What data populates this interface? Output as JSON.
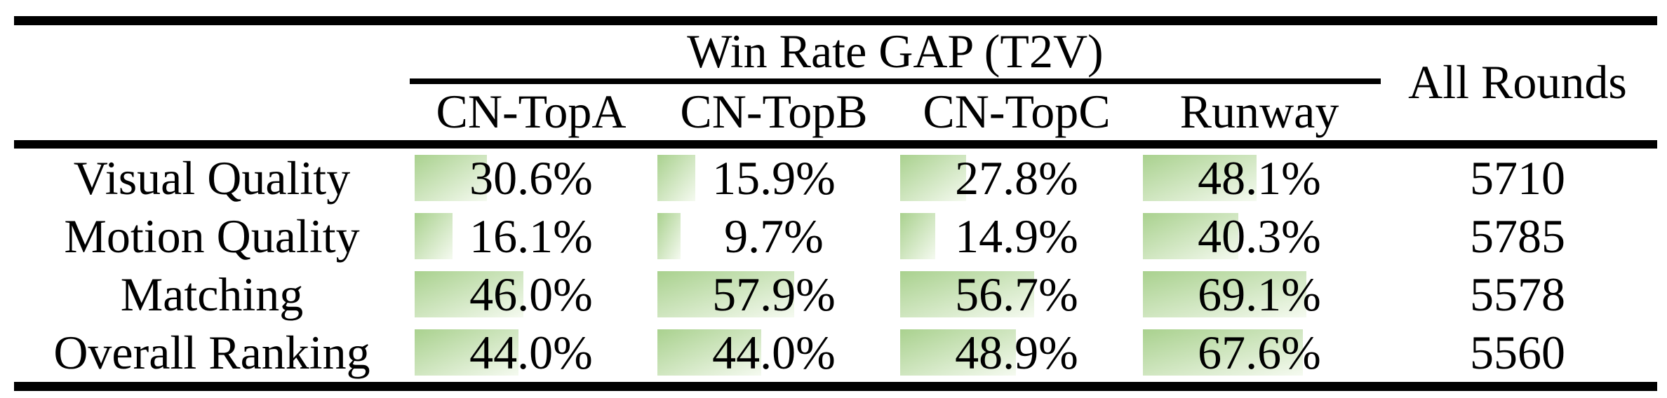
{
  "table": {
    "title": "Win Rate GAP (T2V)",
    "all_rounds_header": "All Rounds",
    "columns": [
      "CN-TopA",
      "CN-TopB",
      "CN-TopC",
      "Runway"
    ],
    "rows": [
      {
        "label": "Visual Quality",
        "values": [
          "30.6%",
          "15.9%",
          "27.8%",
          "48.1%"
        ],
        "bar_percents": [
          30.6,
          15.9,
          27.8,
          48.1
        ],
        "all_rounds": "5710"
      },
      {
        "label": "Motion Quality",
        "values": [
          "16.1%",
          "9.7%",
          "14.9%",
          "40.3%"
        ],
        "bar_percents": [
          16.1,
          9.7,
          14.9,
          40.3
        ],
        "all_rounds": "5785"
      },
      {
        "label": "Matching",
        "values": [
          "46.0%",
          "57.9%",
          "56.7%",
          "69.1%"
        ],
        "bar_percents": [
          46.0,
          57.9,
          56.7,
          69.1
        ],
        "all_rounds": "5578"
      },
      {
        "label": "Overall Ranking",
        "values": [
          "44.0%",
          "44.0%",
          "48.9%",
          "67.6%"
        ],
        "bar_percents": [
          44.0,
          44.0,
          48.9,
          67.6
        ],
        "all_rounds": "5560"
      }
    ],
    "colors": {
      "bar_gradient_start": "#a9d18e",
      "bar_gradient_end": "#f5faf0",
      "rule": "#000000",
      "text": "#000000",
      "background": "#ffffff"
    }
  },
  "chart_data": {
    "type": "table",
    "title": "Win Rate GAP (T2V)",
    "row_categories": [
      "Visual Quality",
      "Motion Quality",
      "Matching",
      "Overall Ranking"
    ],
    "columns": [
      "CN-TopA",
      "CN-TopB",
      "CN-TopC",
      "Runway",
      "All Rounds"
    ],
    "series": [
      {
        "name": "CN-TopA",
        "values": [
          30.6,
          16.1,
          46.0,
          44.0
        ],
        "unit": "%"
      },
      {
        "name": "CN-TopB",
        "values": [
          15.9,
          9.7,
          57.9,
          44.0
        ],
        "unit": "%"
      },
      {
        "name": "CN-TopC",
        "values": [
          27.8,
          14.9,
          56.7,
          48.9
        ],
        "unit": "%"
      },
      {
        "name": "Runway",
        "values": [
          48.1,
          40.3,
          69.1,
          67.6
        ],
        "unit": "%"
      },
      {
        "name": "All Rounds",
        "values": [
          5710,
          5785,
          5578,
          5560
        ],
        "unit": "count"
      }
    ],
    "layout": {
      "bars": "in-cell data bars, width proportional to percent of full column width",
      "bar_scale_max": 100
    }
  }
}
